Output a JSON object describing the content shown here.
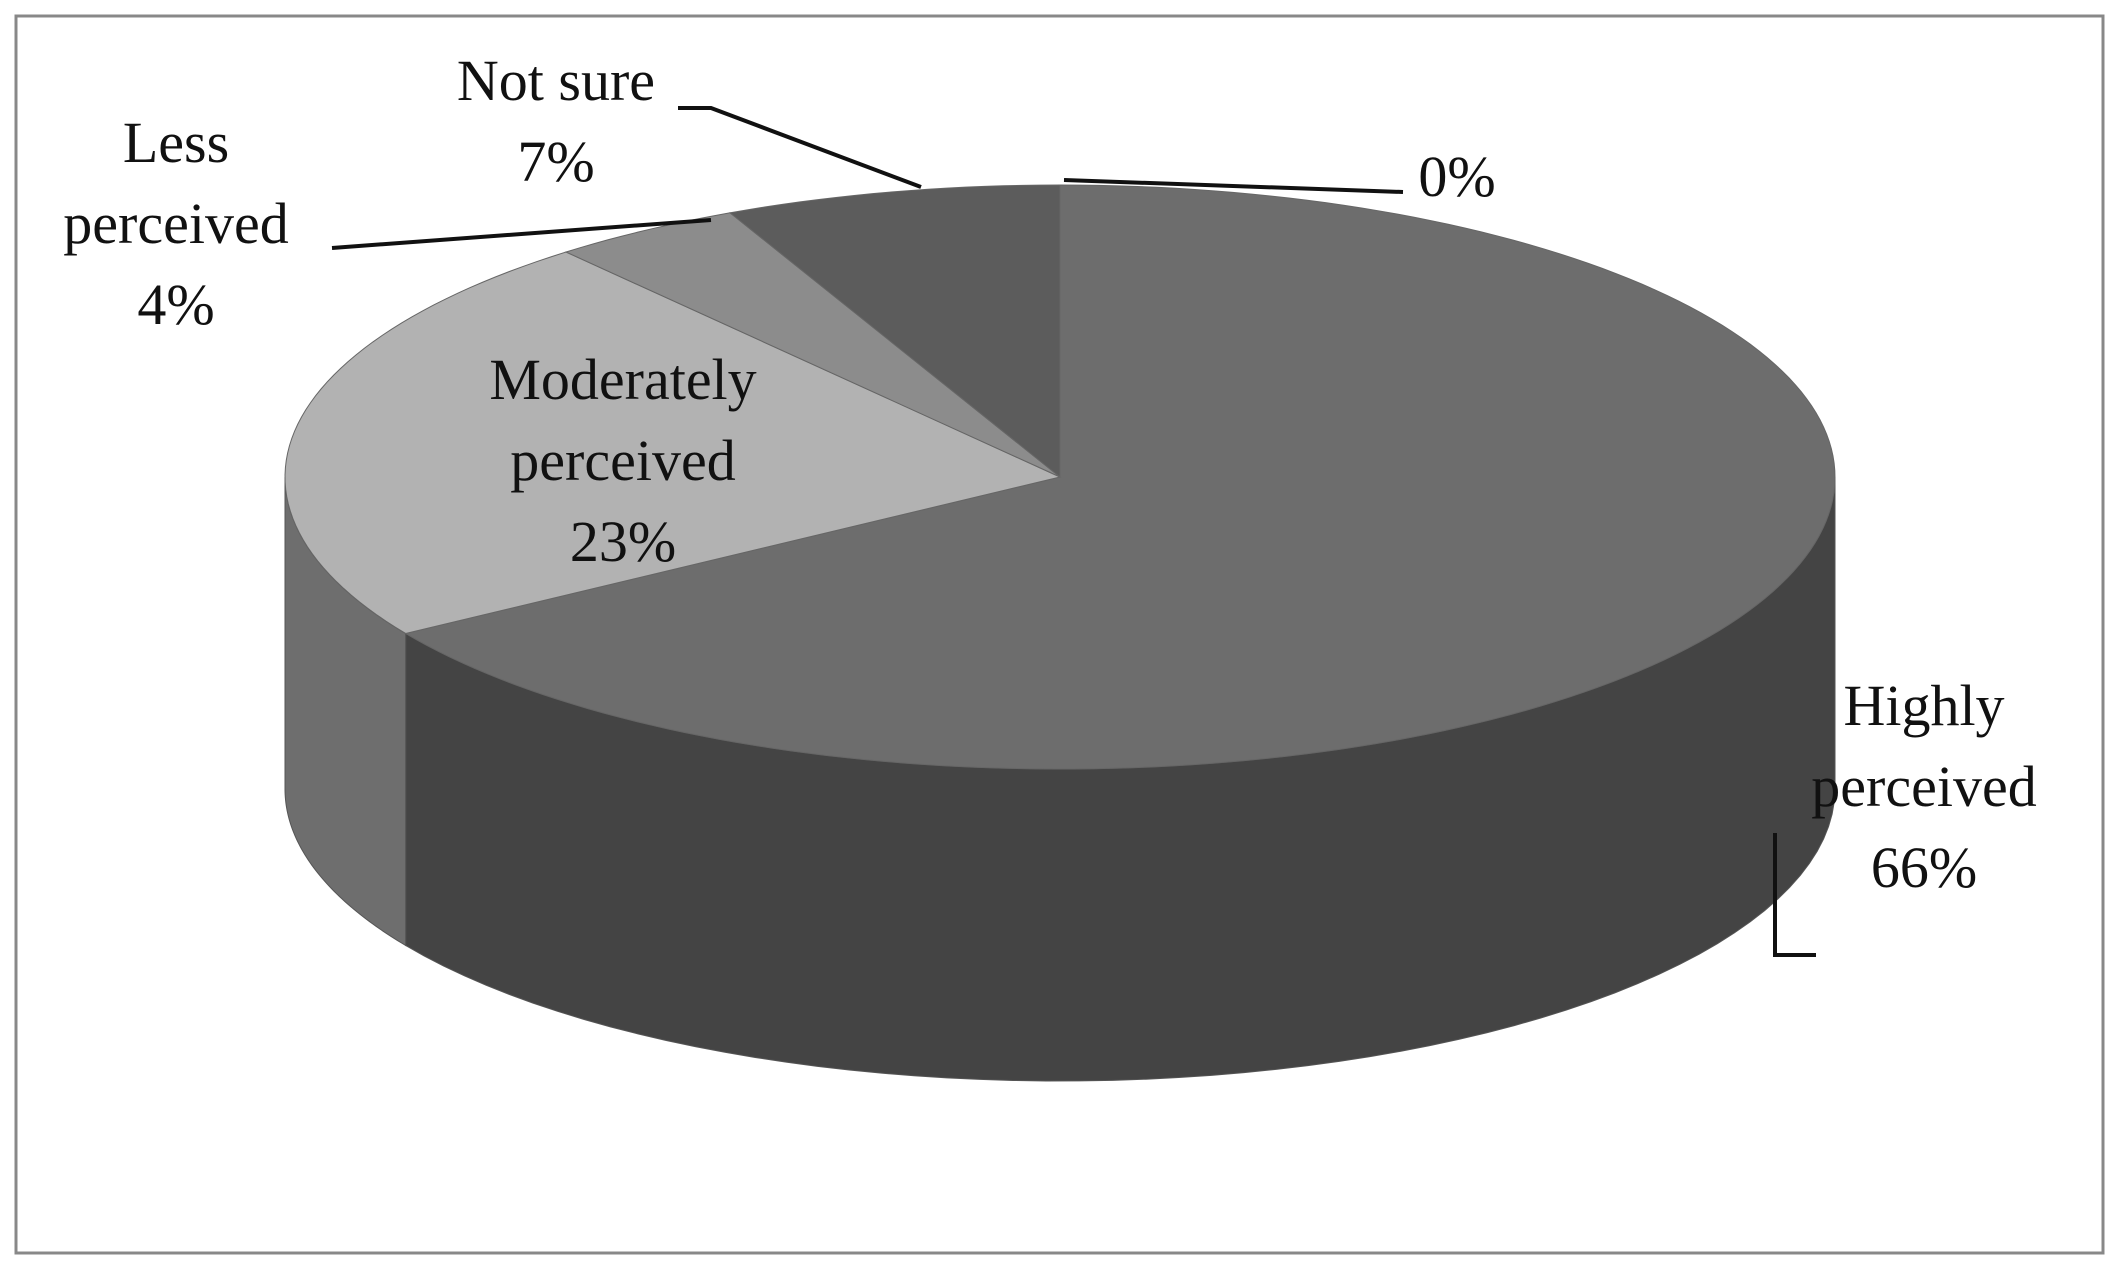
{
  "chart_data": {
    "type": "pie3d",
    "categories": [
      "Highly perceived",
      "Moderately perceived",
      "Less perceived",
      "Not sure",
      null
    ],
    "values": [
      66,
      23,
      4,
      7,
      0
    ],
    "value_labels": [
      "66%",
      "23%",
      "4%",
      "7%",
      "0%"
    ],
    "colors": [
      "#6d6d6d",
      "#b2b2b2",
      "#8c8c8c",
      "#5c5c5c",
      "#5c5c5c"
    ]
  }
}
